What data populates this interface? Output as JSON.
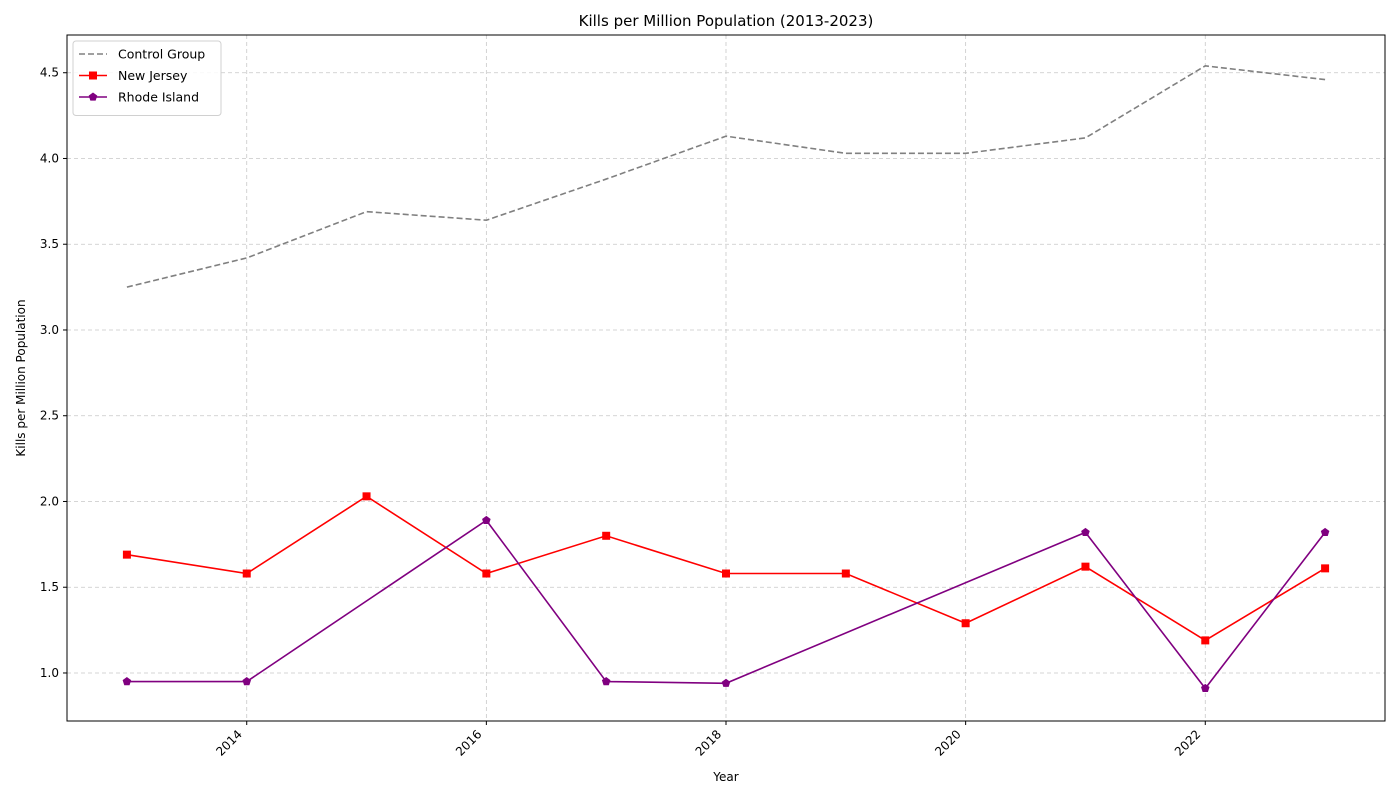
{
  "chart_data": {
    "type": "line",
    "title": "Kills per Million Population (2013-2023)",
    "xlabel": "Year",
    "ylabel": "Kills per Million Population",
    "x": [
      2013,
      2014,
      2015,
      2016,
      2017,
      2018,
      2019,
      2020,
      2021,
      2022,
      2023
    ],
    "xlim": [
      2012.5,
      2023.5
    ],
    "ylim": [
      0.72,
      4.72
    ],
    "x_ticks": [
      "2014",
      "2016",
      "2018",
      "2020",
      "2022"
    ],
    "y_ticks": [
      "1.0",
      "1.5",
      "2.0",
      "2.5",
      "3.0",
      "3.5",
      "4.0",
      "4.5"
    ],
    "grid": true,
    "legend_position": "top-left",
    "series": [
      {
        "name": "Control Group",
        "color": "#808080",
        "line_style": "dashed",
        "marker": "none",
        "values": [
          3.25,
          3.42,
          3.69,
          3.64,
          3.88,
          4.13,
          4.03,
          4.03,
          4.12,
          4.54,
          4.46
        ]
      },
      {
        "name": "New Jersey",
        "color": "#ff0000",
        "line_style": "solid",
        "marker": "square",
        "values": [
          1.69,
          1.58,
          2.03,
          1.58,
          1.8,
          1.58,
          1.58,
          1.29,
          1.62,
          1.19,
          1.61
        ]
      },
      {
        "name": "Rhode Island",
        "color": "#800080",
        "line_style": "solid",
        "marker": "pentagon",
        "values": [
          0.95,
          0.95,
          null,
          1.89,
          0.95,
          0.94,
          null,
          null,
          1.82,
          0.91,
          1.82
        ]
      }
    ]
  }
}
